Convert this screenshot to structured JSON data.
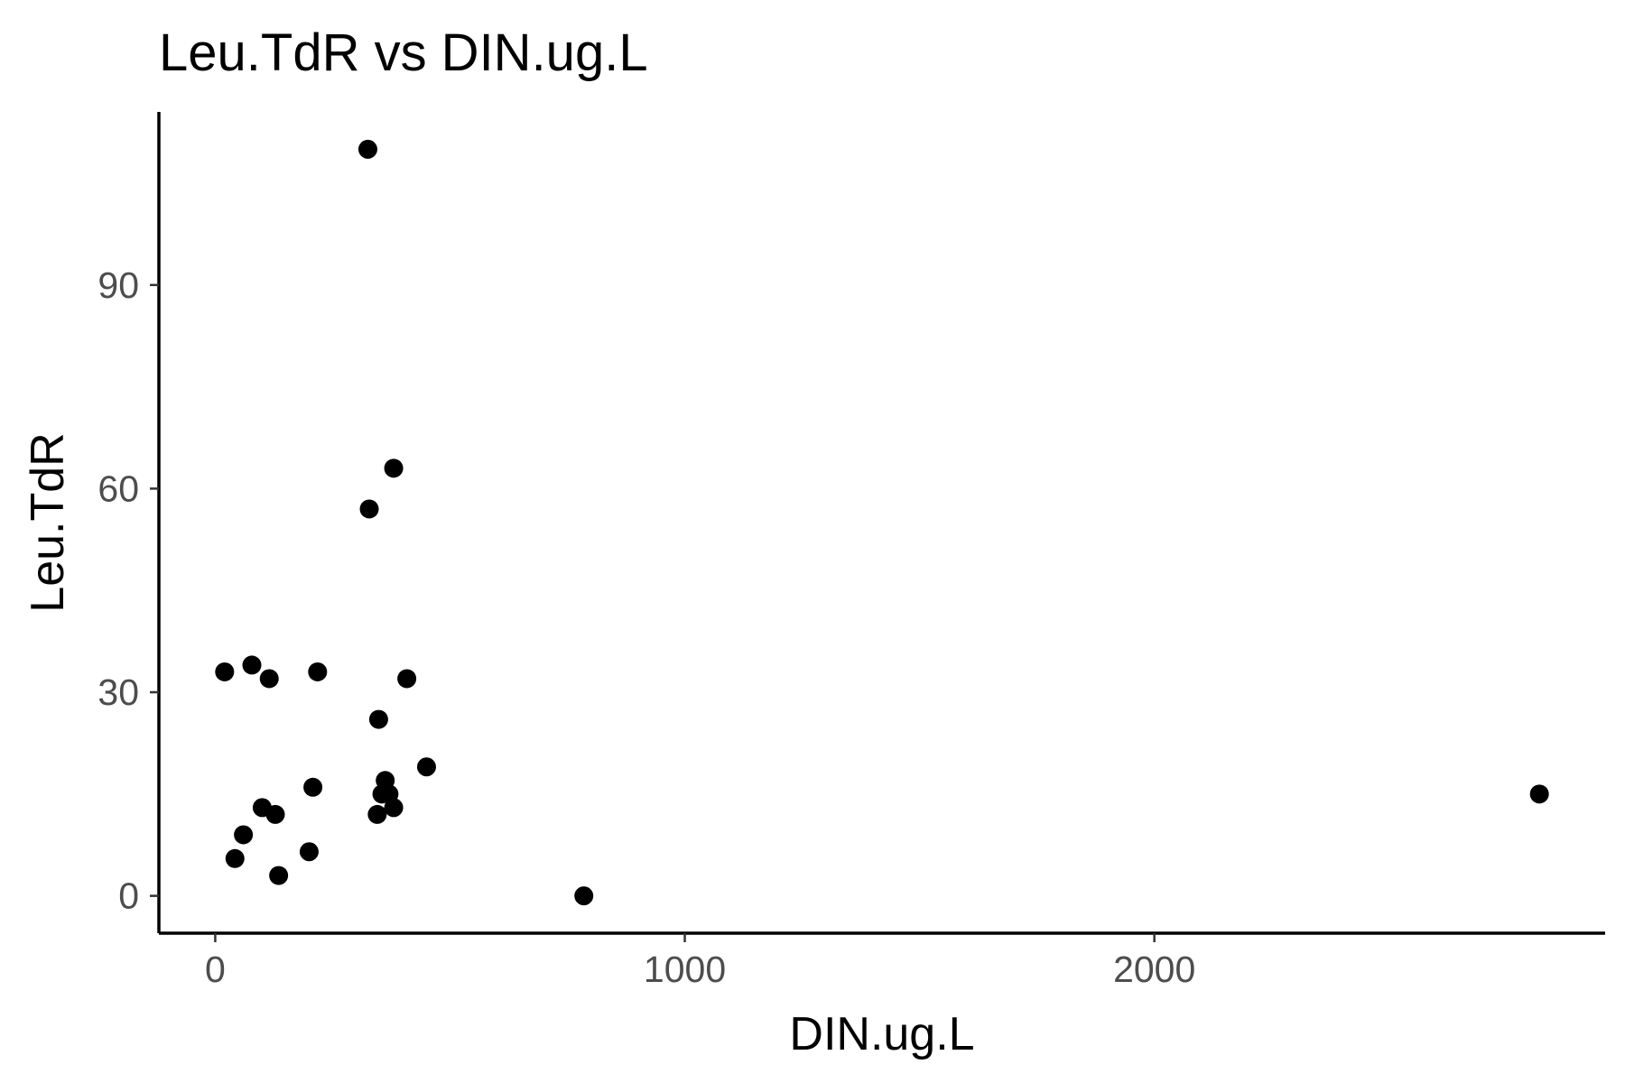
{
  "chart_data": {
    "type": "scatter",
    "title": "Leu.TdR vs DIN.ug.L",
    "xlabel": "DIN.ug.L",
    "ylabel": "Leu.TdR",
    "xlim": [
      -120,
      2960
    ],
    "ylim": [
      -5.5,
      115.5
    ],
    "xticks": [
      0,
      1000,
      2000
    ],
    "yticks": [
      0,
      30,
      60,
      90
    ],
    "xtick_labels": [
      "0",
      "1000",
      "2000"
    ],
    "ytick_labels": [
      "0",
      "30",
      "60",
      "90"
    ],
    "grid": false,
    "legend": "none",
    "point_color": "#000000",
    "points": [
      {
        "x": 325,
        "y": 110
      },
      {
        "x": 380,
        "y": 63
      },
      {
        "x": 328,
        "y": 57
      },
      {
        "x": 20,
        "y": 33
      },
      {
        "x": 78,
        "y": 34
      },
      {
        "x": 115,
        "y": 32
      },
      {
        "x": 218,
        "y": 33
      },
      {
        "x": 408,
        "y": 32
      },
      {
        "x": 348,
        "y": 26
      },
      {
        "x": 450,
        "y": 19
      },
      {
        "x": 208,
        "y": 16
      },
      {
        "x": 362,
        "y": 17
      },
      {
        "x": 355,
        "y": 15
      },
      {
        "x": 370,
        "y": 15
      },
      {
        "x": 100,
        "y": 13
      },
      {
        "x": 128,
        "y": 12
      },
      {
        "x": 345,
        "y": 12
      },
      {
        "x": 380,
        "y": 13
      },
      {
        "x": 60,
        "y": 9
      },
      {
        "x": 200,
        "y": 6.5
      },
      {
        "x": 42,
        "y": 5.5
      },
      {
        "x": 135,
        "y": 3
      },
      {
        "x": 785,
        "y": 0
      },
      {
        "x": 2820,
        "y": 15
      }
    ]
  }
}
